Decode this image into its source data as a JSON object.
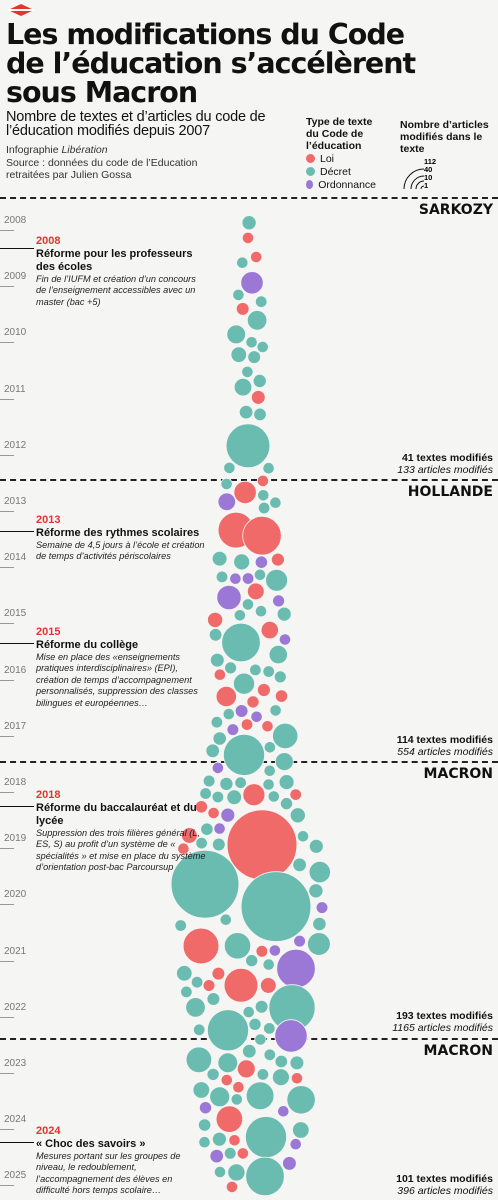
{
  "header": {
    "title": "Les modifications du Code de l’éducation s’accélèrent sous Macron",
    "subtitle": "Nombre de textes et d’articles du code de l’éducation modifiés depuis 2007",
    "credit_prefix": "Infographie ",
    "credit_source_name": "Libération",
    "source_line1": "Source : données du code de l’Education",
    "source_line2": "retraitées par Julien Gossa"
  },
  "legend": {
    "type_title": "Type de texte du Code de l’éducation",
    "types": [
      {
        "label": "Loi",
        "color": "#f06a6a"
      },
      {
        "label": "Décret",
        "color": "#6bbcb0"
      },
      {
        "label": "Ordonnance",
        "color": "#9b78d6"
      }
    ],
    "size_title": "Nombre d’articles modifiés dans le texte",
    "size_values": [
      "112",
      "40",
      "10",
      "1"
    ]
  },
  "periods": [
    {
      "name": "SARKOZY",
      "textes": "41 textes modifiés",
      "articles": "133 articles modifiés"
    },
    {
      "name": "HOLLANDE",
      "textes": "114 textes modifiés",
      "articles": "554 articles modifiés"
    },
    {
      "name": "MACRON",
      "textes": "193 textes modifiés",
      "articles": "1165 articles modifiés"
    },
    {
      "name": "MACRON",
      "textes": "101 textes modifiés",
      "articles": "396 articles modifiés"
    }
  ],
  "years": [
    "2008",
    "2009",
    "2010",
    "2011",
    "2012",
    "2013",
    "2014",
    "2015",
    "2016",
    "2017",
    "2018",
    "2019",
    "2020",
    "2021",
    "2022",
    "2023",
    "2024",
    "2025"
  ],
  "annotations": [
    {
      "year": "2008",
      "title": "Réforme pour les professeurs des écoles",
      "text": "Fin de l’IUFM et création d’un concours de l’enseignement accessibles avec un master (bac +5)"
    },
    {
      "year": "2013",
      "title": "Réforme des rythmes scolaires",
      "text": "Semaine de 4,5 jours à l’école et création de temps d’activités périscolaires"
    },
    {
      "year": "2015",
      "title": "Réforme du collège",
      "text": "Mise en place des «enseignements pratiques interdisciplinaires» (EPI), création de temps d’accompagnement personnalisés, suppression des classes bilingues et européennes…"
    },
    {
      "year": "2018",
      "title": "Réforme du baccalauréat et du lycée",
      "text": "Suppression des trois filières général (L, ES, S) au profit d’un système de « spécialités » et mise en place du système d’orientation post-bac Parcoursup"
    },
    {
      "year": "2024",
      "title": "« Choc des savoirs »",
      "text": "Mesures portant sur les groupes de niveau, le redoublement, l’accompagnement des élèves en difficulté hors temps scolaire…"
    }
  ],
  "chart_data": {
    "type": "bubble-timeline",
    "y_axis": "year",
    "y_range": [
      2008,
      2025
    ],
    "size_variable": "Nombre d’articles modifiés dans le texte",
    "color_variable": "Type de texte du Code de l’éducation",
    "series": [
      {
        "name": "Loi",
        "color": "#f06a6a"
      },
      {
        "name": "Décret",
        "color": "#6bbcb0"
      },
      {
        "name": "Ordonnance",
        "color": "#9b78d6"
      }
    ],
    "periods": [
      {
        "name": "SARKOZY",
        "textes": 41,
        "articles": 133
      },
      {
        "name": "HOLLANDE",
        "textes": 114,
        "articles": 554
      },
      {
        "name": "MACRON",
        "textes": 193,
        "articles": 1165
      },
      {
        "name": "MACRON",
        "textes": 101,
        "articles": 396
      }
    ],
    "highlighted_texts": [
      {
        "date": 2008.3,
        "type": "Loi",
        "articles": 1
      },
      {
        "date": 2009.1,
        "type": "Ordonnance",
        "articles": 8
      },
      {
        "date": 2012.0,
        "type": "Décret",
        "articles": 40
      },
      {
        "date": 2013.5,
        "type": "Loi",
        "articles": 25
      },
      {
        "date": 2013.6,
        "type": "Loi",
        "articles": 30
      },
      {
        "date": 2014.7,
        "type": "Ordonnance",
        "articles": 10
      },
      {
        "date": 2015.5,
        "type": "Décret",
        "articles": 30
      },
      {
        "date": 2017.5,
        "type": "Décret",
        "articles": 35
      },
      {
        "date": 2019.1,
        "type": "Loi",
        "articles": 112
      },
      {
        "date": 2019.8,
        "type": "Décret",
        "articles": 105
      },
      {
        "date": 2020.2,
        "type": "Décret",
        "articles": 112
      },
      {
        "date": 2020.9,
        "type": "Loi",
        "articles": 25
      },
      {
        "date": 2021.3,
        "type": "Ordonnance",
        "articles": 30
      },
      {
        "date": 2021.6,
        "type": "Loi",
        "articles": 22
      },
      {
        "date": 2022.0,
        "type": "Décret",
        "articles": 45
      },
      {
        "date": 2022.4,
        "type": "Décret",
        "articles": 35
      },
      {
        "date": 2022.5,
        "type": "Ordonnance",
        "articles": 20
      },
      {
        "date": 2024.3,
        "type": "Décret",
        "articles": 35
      },
      {
        "date": 2025.0,
        "type": "Décret",
        "articles": 30
      }
    ]
  }
}
